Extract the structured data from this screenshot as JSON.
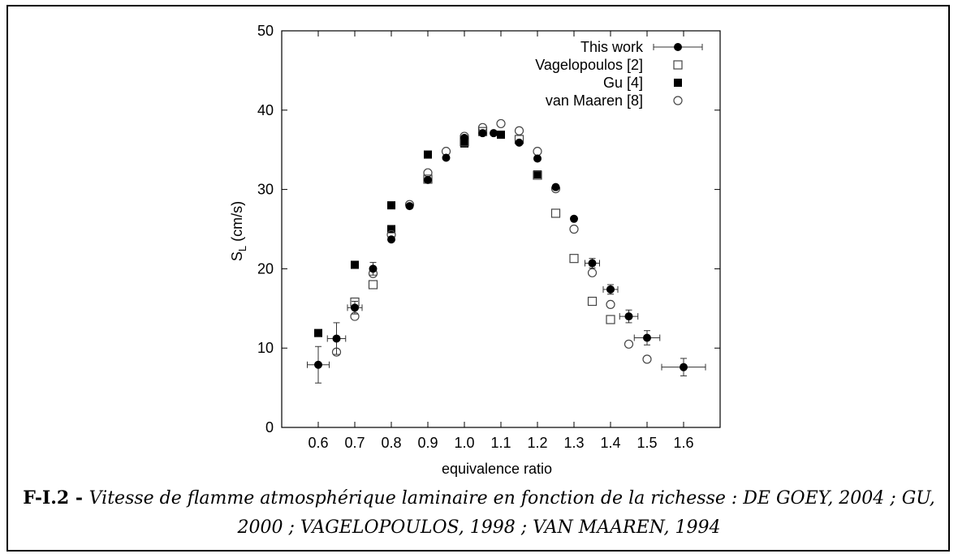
{
  "chart_data": {
    "type": "scatter",
    "title": "",
    "xlabel": "equivalence ratio",
    "ylabel_main": "S",
    "ylabel_sub": "L",
    "ylabel_unit": " (cm/s)",
    "xlim": [
      0.5,
      1.7
    ],
    "ylim": [
      0,
      50
    ],
    "xticks": [
      0.6,
      0.7,
      0.8,
      0.9,
      1.0,
      1.1,
      1.2,
      1.3,
      1.4,
      1.5,
      1.6
    ],
    "xtick_labels": [
      "0.6",
      "0.7",
      "0.8",
      "0.9",
      "1.0",
      "1.1",
      "1.2",
      "1.3",
      "1.4",
      "1.5",
      "1.6"
    ],
    "yticks": [
      0,
      10,
      20,
      30,
      40,
      50
    ],
    "ytick_labels": [
      "0",
      "10",
      "20",
      "30",
      "40",
      "50"
    ],
    "grid": false,
    "legend_position": "top-right",
    "series": [
      {
        "name": "This work",
        "marker": "filled-circle",
        "points": [
          {
            "x": 0.6,
            "y": 7.9,
            "xerr": 0.03,
            "yerr": 2.3
          },
          {
            "x": 0.65,
            "y": 11.2,
            "xerr": 0.025,
            "yerr": 2.0
          },
          {
            "x": 0.7,
            "y": 15.1,
            "xerr": 0.02,
            "yerr": 0.8
          },
          {
            "x": 0.75,
            "y": 20.0,
            "xerr": 0.0,
            "yerr": 0.8
          },
          {
            "x": 0.8,
            "y": 23.7,
            "xerr": 0.0,
            "yerr": 0.0
          },
          {
            "x": 0.85,
            "y": 27.9,
            "xerr": 0.0,
            "yerr": 0.0
          },
          {
            "x": 0.9,
            "y": 31.2,
            "xerr": 0.0,
            "yerr": 0.0
          },
          {
            "x": 0.95,
            "y": 34.0,
            "xerr": 0.0,
            "yerr": 0.0
          },
          {
            "x": 1.0,
            "y": 36.5,
            "xerr": 0.0,
            "yerr": 0.0
          },
          {
            "x": 1.05,
            "y": 37.1,
            "xerr": 0.0,
            "yerr": 0.0
          },
          {
            "x": 1.08,
            "y": 37.1,
            "xerr": 0.0,
            "yerr": 0.0
          },
          {
            "x": 1.15,
            "y": 35.9,
            "xerr": 0.0,
            "yerr": 0.0
          },
          {
            "x": 1.2,
            "y": 33.9,
            "xerr": 0.0,
            "yerr": 0.0
          },
          {
            "x": 1.25,
            "y": 30.3,
            "xerr": 0.0,
            "yerr": 0.0
          },
          {
            "x": 1.3,
            "y": 26.3,
            "xerr": 0.0,
            "yerr": 0.0
          },
          {
            "x": 1.35,
            "y": 20.7,
            "xerr": 0.02,
            "yerr": 0.6
          },
          {
            "x": 1.4,
            "y": 17.4,
            "xerr": 0.02,
            "yerr": 0.6
          },
          {
            "x": 1.45,
            "y": 14.0,
            "xerr": 0.025,
            "yerr": 0.8
          },
          {
            "x": 1.5,
            "y": 11.3,
            "xerr": 0.035,
            "yerr": 0.9
          },
          {
            "x": 1.6,
            "y": 7.6,
            "xerr": 0.06,
            "yerr": 1.1
          }
        ]
      },
      {
        "name": "Vagelopoulos [2]",
        "marker": "open-square",
        "points": [
          {
            "x": 0.7,
            "y": 15.8
          },
          {
            "x": 0.75,
            "y": 18.0
          },
          {
            "x": 0.9,
            "y": 31.3
          },
          {
            "x": 1.0,
            "y": 36.0
          },
          {
            "x": 1.05,
            "y": 37.3
          },
          {
            "x": 1.15,
            "y": 36.3
          },
          {
            "x": 1.2,
            "y": 31.8
          },
          {
            "x": 1.25,
            "y": 27.0
          },
          {
            "x": 1.3,
            "y": 21.3
          },
          {
            "x": 1.35,
            "y": 15.9
          },
          {
            "x": 1.4,
            "y": 13.6
          }
        ]
      },
      {
        "name": "Gu [4]",
        "marker": "filled-square",
        "points": [
          {
            "x": 0.6,
            "y": 11.9
          },
          {
            "x": 0.7,
            "y": 20.5
          },
          {
            "x": 0.8,
            "y": 28.0
          },
          {
            "x": 0.8,
            "y": 25.0
          },
          {
            "x": 0.9,
            "y": 34.4
          },
          {
            "x": 1.0,
            "y": 35.8
          },
          {
            "x": 1.1,
            "y": 36.9
          },
          {
            "x": 1.2,
            "y": 31.9
          }
        ]
      },
      {
        "name": "van Maaren [8]",
        "marker": "open-circle",
        "points": [
          {
            "x": 0.65,
            "y": 9.5
          },
          {
            "x": 0.7,
            "y": 14.0
          },
          {
            "x": 0.75,
            "y": 19.4
          },
          {
            "x": 0.8,
            "y": 24.3
          },
          {
            "x": 0.85,
            "y": 28.1
          },
          {
            "x": 0.9,
            "y": 32.1
          },
          {
            "x": 0.95,
            "y": 34.8
          },
          {
            "x": 1.0,
            "y": 36.7
          },
          {
            "x": 1.05,
            "y": 37.8
          },
          {
            "x": 1.1,
            "y": 38.3
          },
          {
            "x": 1.15,
            "y": 37.4
          },
          {
            "x": 1.2,
            "y": 34.8
          },
          {
            "x": 1.25,
            "y": 30.1
          },
          {
            "x": 1.3,
            "y": 25.0
          },
          {
            "x": 1.35,
            "y": 19.5
          },
          {
            "x": 1.4,
            "y": 15.5
          },
          {
            "x": 1.45,
            "y": 10.5
          },
          {
            "x": 1.5,
            "y": 8.6
          }
        ]
      }
    ]
  },
  "caption": {
    "label": "F-I.2 - ",
    "text": "Vitesse de flamme atmosphérique laminaire en fonction de la richesse : DE GOEY, 2004 ; GU, 2000 ; VAGELOPOULOS, 1998 ; VAN MAAREN, 1994"
  }
}
